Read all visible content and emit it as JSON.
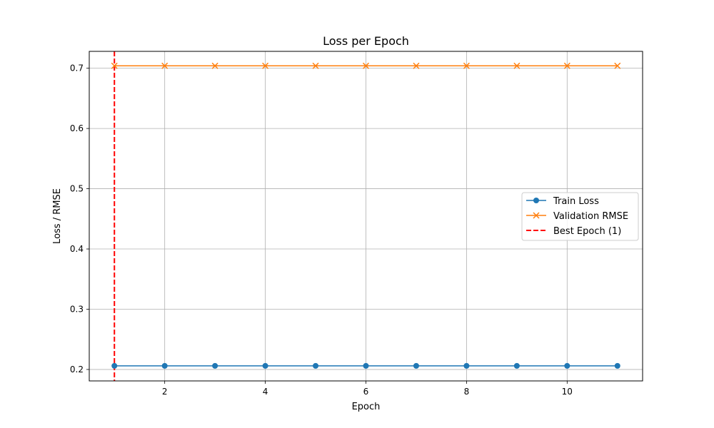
{
  "chart_data": {
    "type": "line",
    "title": "Loss per Epoch",
    "xlabel": "Epoch",
    "ylabel": "Loss / RMSE",
    "xlim": [
      0.5,
      11.5
    ],
    "ylim": [
      0.181,
      0.728
    ],
    "xticks": [
      2,
      4,
      6,
      8,
      10
    ],
    "yticks": [
      0.2,
      0.3,
      0.4,
      0.5,
      0.6,
      0.7
    ],
    "grid": true,
    "legend_position": "center-right",
    "x": [
      1,
      2,
      3,
      4,
      5,
      6,
      7,
      8,
      9,
      10,
      11
    ],
    "series": [
      {
        "name": "Train Loss",
        "color": "#1f77b4",
        "marker": "circle",
        "values": [
          0.206,
          0.206,
          0.206,
          0.206,
          0.206,
          0.206,
          0.206,
          0.206,
          0.206,
          0.206,
          0.206
        ]
      },
      {
        "name": "Validation RMSE",
        "color": "#ff7f0e",
        "marker": "x",
        "values": [
          0.704,
          0.704,
          0.704,
          0.704,
          0.704,
          0.704,
          0.704,
          0.704,
          0.704,
          0.704,
          0.704
        ]
      }
    ],
    "vlines": [
      {
        "name": "Best Epoch (1)",
        "x": 1,
        "color": "#ff0000",
        "style": "dashed"
      }
    ]
  }
}
